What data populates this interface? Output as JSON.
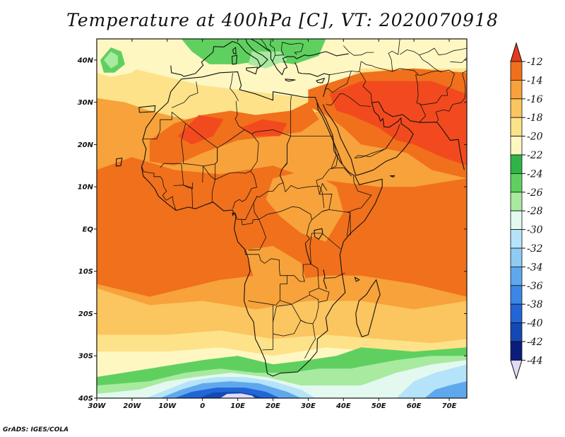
{
  "title": "Temperature at 400hPa [C], VT: 2020070918",
  "credit": "GrADS: IGES/COLA",
  "map": {
    "projection": "lat-lon",
    "lon_range": [
      -30,
      75
    ],
    "lat_range": [
      -40,
      45
    ],
    "lon_ticks": [
      {
        "value": -30,
        "label": "30W"
      },
      {
        "value": -20,
        "label": "20W"
      },
      {
        "value": -10,
        "label": "10W"
      },
      {
        "value": 0,
        "label": "0"
      },
      {
        "value": 10,
        "label": "10E"
      },
      {
        "value": 20,
        "label": "20E"
      },
      {
        "value": 30,
        "label": "30E"
      },
      {
        "value": 40,
        "label": "40E"
      },
      {
        "value": 50,
        "label": "50E"
      },
      {
        "value": 60,
        "label": "60E"
      },
      {
        "value": 70,
        "label": "70E"
      }
    ],
    "lat_ticks": [
      {
        "value": 40,
        "label": "40N"
      },
      {
        "value": 30,
        "label": "30N"
      },
      {
        "value": 20,
        "label": "20N"
      },
      {
        "value": 10,
        "label": "10N"
      },
      {
        "value": 0,
        "label": "EQ"
      },
      {
        "value": -10,
        "label": "10S"
      },
      {
        "value": -20,
        "label": "20S"
      },
      {
        "value": -30,
        "label": "30S"
      },
      {
        "value": -40,
        "label": "40S"
      }
    ]
  },
  "colorbar": {
    "levels": [
      {
        "label": "-12",
        "color": "#e53a1e"
      },
      {
        "label": "-14",
        "color": "#f0701c"
      },
      {
        "label": "-16",
        "color": "#f7a23a"
      },
      {
        "label": "-18",
        "color": "#fbc55f"
      },
      {
        "label": "-20",
        "color": "#fde289"
      },
      {
        "label": "-22",
        "color": "#fef7c2"
      },
      {
        "label": "-24",
        "color": "#2fb447"
      },
      {
        "label": "-26",
        "color": "#5fd05f"
      },
      {
        "label": "-28",
        "color": "#a8eaa0"
      },
      {
        "label": "-30",
        "color": "#e3f9f0"
      },
      {
        "label": "-32",
        "color": "#b5e3fa"
      },
      {
        "label": "-34",
        "color": "#8fcbf3"
      },
      {
        "label": "-36",
        "color": "#5fa8ee"
      },
      {
        "label": "-38",
        "color": "#3b86e6"
      },
      {
        "label": "-40",
        "color": "#2265d6"
      },
      {
        "label": "-42",
        "color": "#1448b4"
      },
      {
        "label": "-44",
        "color": "#0a1c7c"
      }
    ],
    "top_arrow_color": "#e53a1e",
    "bottom_arrow_color": "#e0dcf8"
  },
  "field_colors": {
    "background": "#f7a23a",
    "warmest": "#f24a1e",
    "warm": "#f0701c",
    "mid": "#fbc55f",
    "light": "#fde289",
    "pale": "#fef7c2",
    "green_dark": "#2fb447",
    "green": "#5fd05f",
    "green_light": "#a8eaa0",
    "cyan_pale": "#e3f9f0",
    "blue_light": "#b5e3fa",
    "blue": "#5fa8ee",
    "blue_dark": "#2265d6",
    "navy": "#1448b4",
    "lavender": "#e0dcf8"
  }
}
